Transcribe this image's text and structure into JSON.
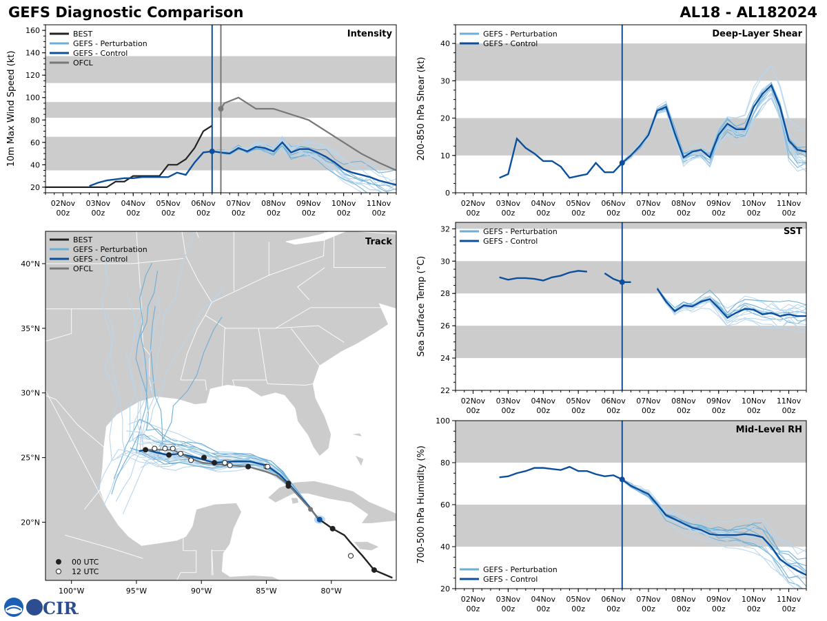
{
  "header": {
    "title": "GEFS Diagnostic Comparison",
    "storm": "AL18 - AL182024"
  },
  "logo": {
    "text": "CIRA",
    "agency": "NOAA"
  },
  "colors": {
    "best": "#222222",
    "perturbation": "#6baed6",
    "perturbation_light": "#b9d6ec",
    "control": "#0b4f9c",
    "ofcl": "#777777",
    "band": "#cccccc",
    "land": "#cccccc"
  },
  "time_axis": {
    "tick_days": [
      2,
      3,
      4,
      5,
      6,
      7,
      8,
      9,
      10,
      11
    ],
    "tick_labels": [
      [
        "02Nov",
        "00z"
      ],
      [
        "03Nov",
        "00z"
      ],
      [
        "04Nov",
        "00z"
      ],
      [
        "05Nov",
        "00z"
      ],
      [
        "06Nov",
        "00z"
      ],
      [
        "07Nov",
        "00z"
      ],
      [
        "08Nov",
        "00z"
      ],
      [
        "09Nov",
        "00z"
      ],
      [
        "10Nov",
        "00z"
      ],
      [
        "11Nov",
        "00z"
      ]
    ],
    "range_days": [
      1.5,
      11.5
    ],
    "init_day": 6.25,
    "ofcl_day": 6.5
  },
  "chart_data": [
    {
      "id": "intensity",
      "type": "line",
      "title": "Intensity",
      "ylabel": "10m Max Wind Speed (kt)",
      "ylim": [
        15,
        165
      ],
      "yticks": [
        20,
        40,
        60,
        80,
        100,
        120,
        140,
        160
      ],
      "bands": [
        [
          35,
          65
        ],
        [
          82,
          96
        ],
        [
          113,
          137
        ]
      ],
      "legend": [
        "BEST",
        "GEFS - Perturbation",
        "GEFS - Control",
        "OFCL"
      ],
      "series": [
        {
          "name": "BEST",
          "x": [
            1.5,
            2.25,
            2.75,
            3.0,
            3.25,
            3.5,
            3.75,
            4.0,
            4.25,
            4.5,
            4.75,
            5.0,
            5.25,
            5.5,
            5.75,
            6.0,
            6.25
          ],
          "values": [
            20,
            20,
            20,
            20,
            20,
            25,
            25,
            30,
            30,
            30,
            30,
            40,
            40,
            45,
            55,
            70,
            75
          ]
        },
        {
          "name": "OFCL",
          "x": [
            6.5,
            6.6,
            7.0,
            7.5,
            8.0,
            8.5,
            9.0,
            9.5,
            10.0,
            10.5,
            11.0,
            11.5
          ],
          "values": [
            90,
            95,
            100,
            90,
            90,
            85,
            80,
            70,
            60,
            50,
            42,
            35
          ]
        },
        {
          "name": "GEFS - Control",
          "x": [
            2.75,
            3.0,
            3.25,
            3.5,
            3.75,
            4.0,
            4.25,
            4.5,
            4.75,
            5.0,
            5.25,
            5.5,
            5.75,
            6.0,
            6.25,
            6.5,
            6.75,
            7.0,
            7.25,
            7.5,
            7.75,
            8.0,
            8.25,
            8.5,
            8.75,
            9.0,
            9.25,
            9.5,
            9.75,
            10.0,
            10.25,
            10.5,
            10.75,
            11.0,
            11.25,
            11.5
          ],
          "values": [
            21,
            24,
            26,
            27,
            28,
            28,
            29,
            29,
            29,
            29,
            33,
            31,
            42,
            51,
            52,
            51,
            50,
            55,
            52,
            56,
            55,
            52,
            60,
            51,
            54,
            54,
            51,
            47,
            42,
            36,
            33,
            31,
            29,
            26,
            24,
            22
          ]
        }
      ],
      "ensemble_spread": {
        "center": "GEFS - Control",
        "count": 14,
        "start_day": 6.25
      }
    },
    {
      "id": "shear",
      "type": "line",
      "title": "Deep-Layer Shear",
      "ylabel": "200-850 hPa Shear (kt)",
      "ylim": [
        0,
        45
      ],
      "yticks": [
        0,
        10,
        20,
        30,
        40
      ],
      "bands": [
        [
          10,
          20
        ],
        [
          30,
          40
        ]
      ],
      "legend": [
        "GEFS - Perturbation",
        "GEFS - Control"
      ],
      "series": [
        {
          "name": "GEFS - Control",
          "x": [
            2.75,
            3.0,
            3.25,
            3.5,
            3.75,
            4.0,
            4.25,
            4.5,
            4.75,
            5.0,
            5.25,
            5.5,
            5.75,
            6.0,
            6.25,
            6.5,
            6.75,
            7.0,
            7.25,
            7.5,
            7.75,
            8.0,
            8.25,
            8.5,
            8.75,
            9.0,
            9.25,
            9.5,
            9.75,
            10.0,
            10.25,
            10.5,
            10.75,
            11.0,
            11.25,
            11.5
          ],
          "values": [
            4,
            5,
            14.5,
            12,
            10.5,
            8.5,
            8.5,
            7,
            4,
            4.5,
            5,
            8,
            5.5,
            5.5,
            8,
            10,
            12.5,
            15.5,
            22,
            23,
            16,
            9.5,
            11,
            11.5,
            9.5,
            15.5,
            18.5,
            17,
            17,
            23,
            26.5,
            28.8,
            23,
            14,
            11.5,
            11
          ]
        }
      ],
      "ensemble_spread": {
        "center": "GEFS - Control",
        "count": 18,
        "start_day": 6.25
      }
    },
    {
      "id": "sst",
      "type": "line",
      "title": "SST",
      "ylabel": "Sea Surface Temp (°C)",
      "ylim": [
        22,
        32.4
      ],
      "yticks": [
        22,
        24,
        26,
        28,
        30,
        32
      ],
      "bands": [
        [
          24,
          26
        ],
        [
          28,
          30
        ],
        [
          32,
          32.4
        ]
      ],
      "legend": [
        "GEFS - Perturbation",
        "GEFS - Control"
      ],
      "series": [
        {
          "name": "GEFS - Control",
          "segments": [
            {
              "x": [
                2.75,
                3.0,
                3.25,
                3.5,
                3.75,
                4.0,
                4.25,
                4.5,
                4.75,
                5.0,
                5.25
              ],
              "values": [
                29.0,
                28.85,
                28.95,
                28.95,
                28.9,
                28.8,
                29.0,
                29.1,
                29.3,
                29.4,
                29.35
              ]
            },
            {
              "x": [
                5.75,
                6.0,
                6.25,
                6.5
              ],
              "values": [
                29.25,
                28.9,
                28.7,
                28.7
              ]
            },
            {
              "x": [
                7.25,
                7.5,
                7.75,
                8.0,
                8.25,
                8.5,
                8.75,
                9.0,
                9.25,
                9.5,
                9.75,
                10.0,
                10.25,
                10.5,
                10.75,
                11.0,
                11.25,
                11.5
              ],
              "values": [
                28.3,
                27.5,
                26.9,
                27.25,
                27.2,
                27.5,
                27.65,
                27.1,
                26.5,
                26.8,
                27.05,
                27.0,
                26.7,
                26.8,
                26.6,
                26.7,
                26.6,
                26.6
              ]
            }
          ]
        }
      ],
      "ensemble_spread": {
        "center": "GEFS - Control",
        "count": 14,
        "start_day": 7.25
      }
    },
    {
      "id": "rh",
      "type": "line",
      "title": "Mid-Level RH",
      "ylabel": "700-500 hPa Humidity (%)",
      "ylim": [
        20,
        100
      ],
      "yticks": [
        20,
        40,
        60,
        80,
        100
      ],
      "bands": [
        [
          40,
          60
        ],
        [
          80,
          100
        ]
      ],
      "legend": [
        "GEFS - Perturbation",
        "GEFS - Control"
      ],
      "series": [
        {
          "name": "GEFS - Control",
          "x": [
            2.75,
            3.0,
            3.25,
            3.5,
            3.75,
            4.0,
            4.25,
            4.5,
            4.75,
            5.0,
            5.25,
            5.5,
            5.75,
            6.0,
            6.25,
            6.5,
            6.75,
            7.0,
            7.25,
            7.5,
            7.75,
            8.0,
            8.25,
            8.5,
            8.75,
            9.0,
            9.25,
            9.5,
            9.75,
            10.0,
            10.25,
            10.5,
            10.75,
            11.0,
            11.25,
            11.5
          ],
          "values": [
            73,
            73.5,
            75,
            76,
            77.5,
            77.5,
            77,
            76.5,
            78,
            76,
            76,
            74.5,
            73.5,
            74,
            72,
            69,
            67,
            65,
            60,
            55,
            53,
            51,
            49,
            48,
            46,
            45.5,
            45.5,
            45.5,
            46,
            45.5,
            44.5,
            40,
            34,
            31,
            28.5,
            26.5
          ]
        }
      ],
      "ensemble_spread": {
        "center": "GEFS - Control",
        "count": 16,
        "start_day": 6.25
      }
    },
    {
      "id": "track",
      "type": "scatter",
      "title": "Track",
      "xlim": [
        -102.0,
        -75.0
      ],
      "ylim": [
        15.5,
        42.5
      ],
      "lon_ticks": [
        -100,
        -95,
        -90,
        -85,
        -80
      ],
      "lon_labels": [
        "100°W",
        "95°W",
        "90°W",
        "85°W",
        "80°W"
      ],
      "lat_ticks": [
        20,
        25,
        30,
        35,
        40
      ],
      "lat_labels": [
        "20°N",
        "25°N",
        "30°N",
        "35°N",
        "40°N"
      ],
      "legend": [
        "BEST",
        "GEFS - Perturbation",
        "GEFS - Control",
        "OFCL"
      ],
      "marker_legend": [
        "00 UTC",
        "12 UTC"
      ],
      "series": [
        {
          "name": "BEST",
          "lon": [
            -75.3,
            -76.7,
            -77.6,
            -78.5,
            -79.0,
            -79.9,
            -80.9
          ],
          "lat": [
            15.7,
            16.3,
            17.4,
            18.4,
            19.0,
            19.5,
            20.2
          ],
          "markers": [
            [
              "00",
              -76.7,
              16.3
            ],
            [
              "12",
              -78.5,
              17.4
            ],
            [
              "00",
              -79.9,
              19.5
            ]
          ]
        },
        {
          "name": "GEFS - Control",
          "lon": [
            -80.9,
            -81.7,
            -82.6,
            -83.3,
            -84.0,
            -85.0,
            -86.3,
            -87.6,
            -89.0,
            -90.4,
            -91.7,
            -92.6,
            -93.5,
            -94.2,
            -94.8
          ],
          "lat": [
            20.1,
            21.2,
            22.2,
            23.0,
            23.7,
            24.4,
            24.7,
            24.7,
            24.6,
            25.0,
            25.3,
            25.2,
            25.4,
            25.6,
            25.5
          ]
        },
        {
          "name": "OFCL",
          "lon": [
            -80.9,
            -81.6,
            -82.5,
            -83.3,
            -84.2,
            -85.0,
            -86.4,
            -87.8,
            -89.0,
            -89.9,
            -90.8,
            -91.6,
            -92.2,
            -92.8,
            -93.6,
            -94.2
          ],
          "lat": [
            20.2,
            21.0,
            22.0,
            22.9,
            23.6,
            23.9,
            24.3,
            24.4,
            24.5,
            24.6,
            24.9,
            25.3,
            25.6,
            25.6,
            25.6,
            25.6
          ],
          "markers": [
            [
              "12",
              -85.0,
              24.3
            ],
            [
              "00",
              -86.4,
              24.3
            ],
            [
              "12",
              -87.8,
              24.4
            ],
            [
              "00",
              -89.0,
              24.6
            ],
            [
              "12",
              -90.8,
              24.8
            ],
            [
              "12",
              -91.6,
              25.3
            ],
            [
              "12",
              -92.2,
              25.7
            ],
            [
              "12",
              -92.8,
              25.7
            ],
            [
              "12",
              -93.6,
              25.7
            ],
            [
              "00",
              -94.3,
              25.6
            ],
            [
              "00",
              -92.5,
              25.2
            ],
            [
              "00",
              -89.8,
              25.0
            ],
            [
              "12",
              -88.2,
              24.6
            ],
            [
              "12",
              -84.9,
              24.3
            ],
            [
              "00",
              -83.3,
              23.0
            ],
            [
              "00",
              -83.3,
              22.8
            ]
          ]
        }
      ]
    }
  ]
}
